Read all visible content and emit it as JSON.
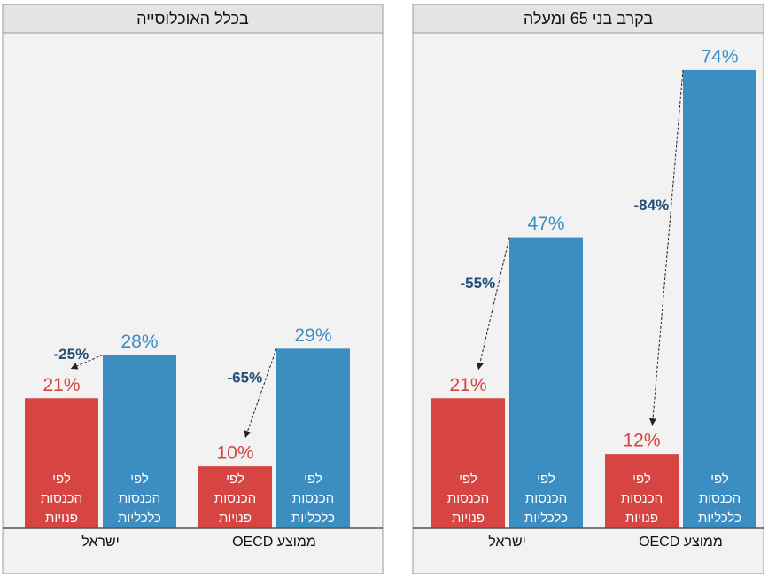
{
  "chart_data": [
    {
      "type": "bar",
      "title": "בכלל האוכלוסייה",
      "categories": [
        "ישראל",
        "ממוצע OECD"
      ],
      "series": [
        {
          "name": "לפי הכנסות פנויות",
          "color": "#d64541",
          "values": [
            21,
            10
          ],
          "value_labels": [
            "21%",
            "10%"
          ]
        },
        {
          "name": "לפי הכנסות כלכליות",
          "color": "#3b8dc2",
          "values": [
            28,
            29
          ],
          "value_labels": [
            "28%",
            "29%"
          ]
        }
      ],
      "annotations": [
        "-25%",
        "-65%"
      ],
      "ylim": [
        0,
        80
      ]
    },
    {
      "type": "bar",
      "title": "בקרב בני 65 ומעלה",
      "categories": [
        "ישראל",
        "ממוצע OECD"
      ],
      "series": [
        {
          "name": "לפי הכנסות פנויות",
          "color": "#d64541",
          "values": [
            21,
            12
          ],
          "value_labels": [
            "21%",
            "12%"
          ]
        },
        {
          "name": "לפי הכנסות כלכליות",
          "color": "#3b8dc2",
          "values": [
            47,
            74
          ],
          "value_labels": [
            "47%",
            "74%"
          ]
        }
      ],
      "annotations": [
        "-55%",
        "-84%"
      ],
      "ylim": [
        0,
        80
      ]
    }
  ]
}
